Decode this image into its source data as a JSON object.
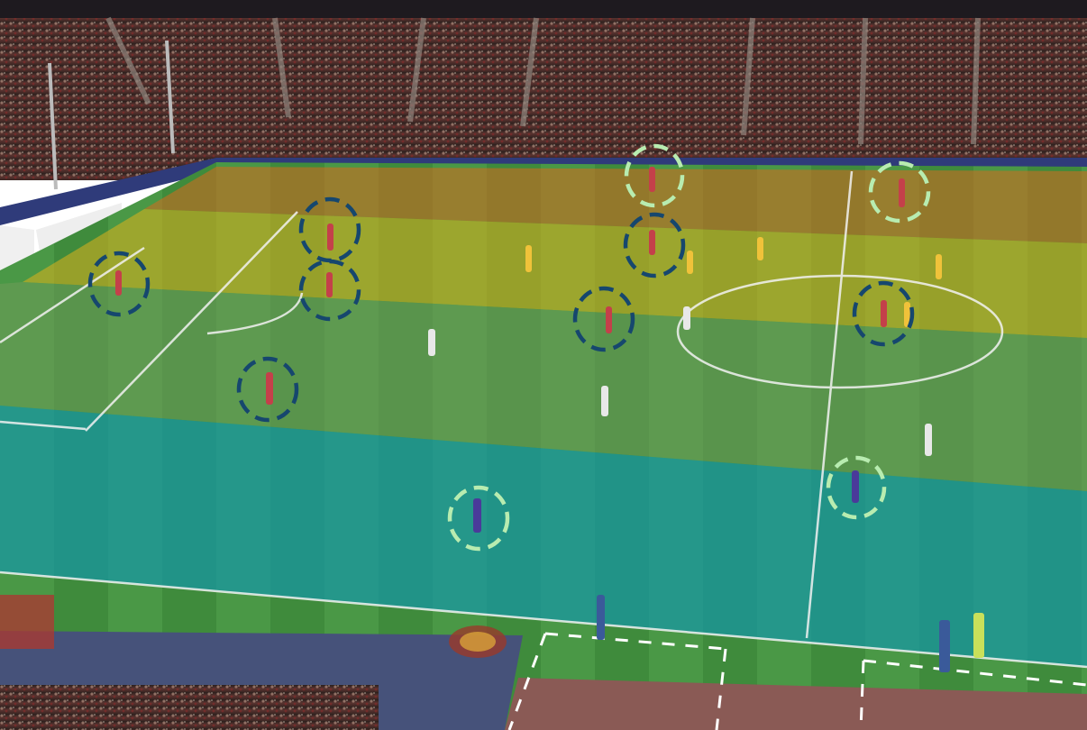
{
  "image": {
    "description_tag": "football-tactical-analysis",
    "zones": [
      {
        "name": "zone-band-1",
        "color": "#d96a1e",
        "opacity": 0.55
      },
      {
        "name": "zone-band-2",
        "color": "#e0b21c",
        "opacity": 0.55
      },
      {
        "name": "zone-band-3",
        "color": "#6f9c5a",
        "opacity": 0.55
      },
      {
        "name": "zone-band-4",
        "color": "#1597a6",
        "opacity": 0.7
      }
    ],
    "marker_colors": {
      "dark": "#16476e",
      "light": "#b8ecb0"
    },
    "colors": {
      "pitch": "#3c8a3a",
      "stands": "#3a2a26",
      "ad_board": "#3a4a8a",
      "lines": "#f4f4f4"
    }
  }
}
